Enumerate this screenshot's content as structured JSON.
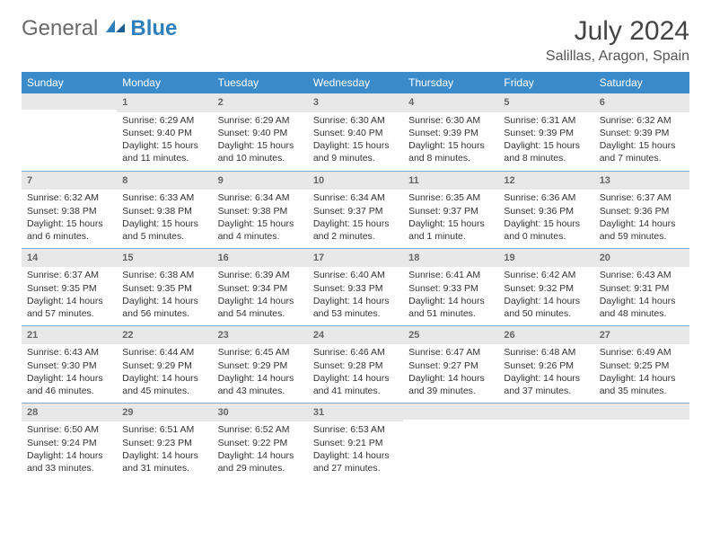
{
  "brand": {
    "part1": "General",
    "part2": "Blue"
  },
  "title": "July 2024",
  "location": "Salillas, Aragon, Spain",
  "header_bg": "#3b8bca",
  "days": [
    "Sunday",
    "Monday",
    "Tuesday",
    "Wednesday",
    "Thursday",
    "Friday",
    "Saturday"
  ],
  "weeks": [
    [
      {
        "n": "",
        "sr": "",
        "ss": "",
        "dl": ""
      },
      {
        "n": "1",
        "sr": "Sunrise: 6:29 AM",
        "ss": "Sunset: 9:40 PM",
        "dl": "Daylight: 15 hours and 11 minutes."
      },
      {
        "n": "2",
        "sr": "Sunrise: 6:29 AM",
        "ss": "Sunset: 9:40 PM",
        "dl": "Daylight: 15 hours and 10 minutes."
      },
      {
        "n": "3",
        "sr": "Sunrise: 6:30 AM",
        "ss": "Sunset: 9:40 PM",
        "dl": "Daylight: 15 hours and 9 minutes."
      },
      {
        "n": "4",
        "sr": "Sunrise: 6:30 AM",
        "ss": "Sunset: 9:39 PM",
        "dl": "Daylight: 15 hours and 8 minutes."
      },
      {
        "n": "5",
        "sr": "Sunrise: 6:31 AM",
        "ss": "Sunset: 9:39 PM",
        "dl": "Daylight: 15 hours and 8 minutes."
      },
      {
        "n": "6",
        "sr": "Sunrise: 6:32 AM",
        "ss": "Sunset: 9:39 PM",
        "dl": "Daylight: 15 hours and 7 minutes."
      }
    ],
    [
      {
        "n": "7",
        "sr": "Sunrise: 6:32 AM",
        "ss": "Sunset: 9:38 PM",
        "dl": "Daylight: 15 hours and 6 minutes."
      },
      {
        "n": "8",
        "sr": "Sunrise: 6:33 AM",
        "ss": "Sunset: 9:38 PM",
        "dl": "Daylight: 15 hours and 5 minutes."
      },
      {
        "n": "9",
        "sr": "Sunrise: 6:34 AM",
        "ss": "Sunset: 9:38 PM",
        "dl": "Daylight: 15 hours and 4 minutes."
      },
      {
        "n": "10",
        "sr": "Sunrise: 6:34 AM",
        "ss": "Sunset: 9:37 PM",
        "dl": "Daylight: 15 hours and 2 minutes."
      },
      {
        "n": "11",
        "sr": "Sunrise: 6:35 AM",
        "ss": "Sunset: 9:37 PM",
        "dl": "Daylight: 15 hours and 1 minute."
      },
      {
        "n": "12",
        "sr": "Sunrise: 6:36 AM",
        "ss": "Sunset: 9:36 PM",
        "dl": "Daylight: 15 hours and 0 minutes."
      },
      {
        "n": "13",
        "sr": "Sunrise: 6:37 AM",
        "ss": "Sunset: 9:36 PM",
        "dl": "Daylight: 14 hours and 59 minutes."
      }
    ],
    [
      {
        "n": "14",
        "sr": "Sunrise: 6:37 AM",
        "ss": "Sunset: 9:35 PM",
        "dl": "Daylight: 14 hours and 57 minutes."
      },
      {
        "n": "15",
        "sr": "Sunrise: 6:38 AM",
        "ss": "Sunset: 9:35 PM",
        "dl": "Daylight: 14 hours and 56 minutes."
      },
      {
        "n": "16",
        "sr": "Sunrise: 6:39 AM",
        "ss": "Sunset: 9:34 PM",
        "dl": "Daylight: 14 hours and 54 minutes."
      },
      {
        "n": "17",
        "sr": "Sunrise: 6:40 AM",
        "ss": "Sunset: 9:33 PM",
        "dl": "Daylight: 14 hours and 53 minutes."
      },
      {
        "n": "18",
        "sr": "Sunrise: 6:41 AM",
        "ss": "Sunset: 9:33 PM",
        "dl": "Daylight: 14 hours and 51 minutes."
      },
      {
        "n": "19",
        "sr": "Sunrise: 6:42 AM",
        "ss": "Sunset: 9:32 PM",
        "dl": "Daylight: 14 hours and 50 minutes."
      },
      {
        "n": "20",
        "sr": "Sunrise: 6:43 AM",
        "ss": "Sunset: 9:31 PM",
        "dl": "Daylight: 14 hours and 48 minutes."
      }
    ],
    [
      {
        "n": "21",
        "sr": "Sunrise: 6:43 AM",
        "ss": "Sunset: 9:30 PM",
        "dl": "Daylight: 14 hours and 46 minutes."
      },
      {
        "n": "22",
        "sr": "Sunrise: 6:44 AM",
        "ss": "Sunset: 9:29 PM",
        "dl": "Daylight: 14 hours and 45 minutes."
      },
      {
        "n": "23",
        "sr": "Sunrise: 6:45 AM",
        "ss": "Sunset: 9:29 PM",
        "dl": "Daylight: 14 hours and 43 minutes."
      },
      {
        "n": "24",
        "sr": "Sunrise: 6:46 AM",
        "ss": "Sunset: 9:28 PM",
        "dl": "Daylight: 14 hours and 41 minutes."
      },
      {
        "n": "25",
        "sr": "Sunrise: 6:47 AM",
        "ss": "Sunset: 9:27 PM",
        "dl": "Daylight: 14 hours and 39 minutes."
      },
      {
        "n": "26",
        "sr": "Sunrise: 6:48 AM",
        "ss": "Sunset: 9:26 PM",
        "dl": "Daylight: 14 hours and 37 minutes."
      },
      {
        "n": "27",
        "sr": "Sunrise: 6:49 AM",
        "ss": "Sunset: 9:25 PM",
        "dl": "Daylight: 14 hours and 35 minutes."
      }
    ],
    [
      {
        "n": "28",
        "sr": "Sunrise: 6:50 AM",
        "ss": "Sunset: 9:24 PM",
        "dl": "Daylight: 14 hours and 33 minutes."
      },
      {
        "n": "29",
        "sr": "Sunrise: 6:51 AM",
        "ss": "Sunset: 9:23 PM",
        "dl": "Daylight: 14 hours and 31 minutes."
      },
      {
        "n": "30",
        "sr": "Sunrise: 6:52 AM",
        "ss": "Sunset: 9:22 PM",
        "dl": "Daylight: 14 hours and 29 minutes."
      },
      {
        "n": "31",
        "sr": "Sunrise: 6:53 AM",
        "ss": "Sunset: 9:21 PM",
        "dl": "Daylight: 14 hours and 27 minutes."
      },
      {
        "n": "",
        "sr": "",
        "ss": "",
        "dl": ""
      },
      {
        "n": "",
        "sr": "",
        "ss": "",
        "dl": ""
      },
      {
        "n": "",
        "sr": "",
        "ss": "",
        "dl": ""
      }
    ]
  ]
}
